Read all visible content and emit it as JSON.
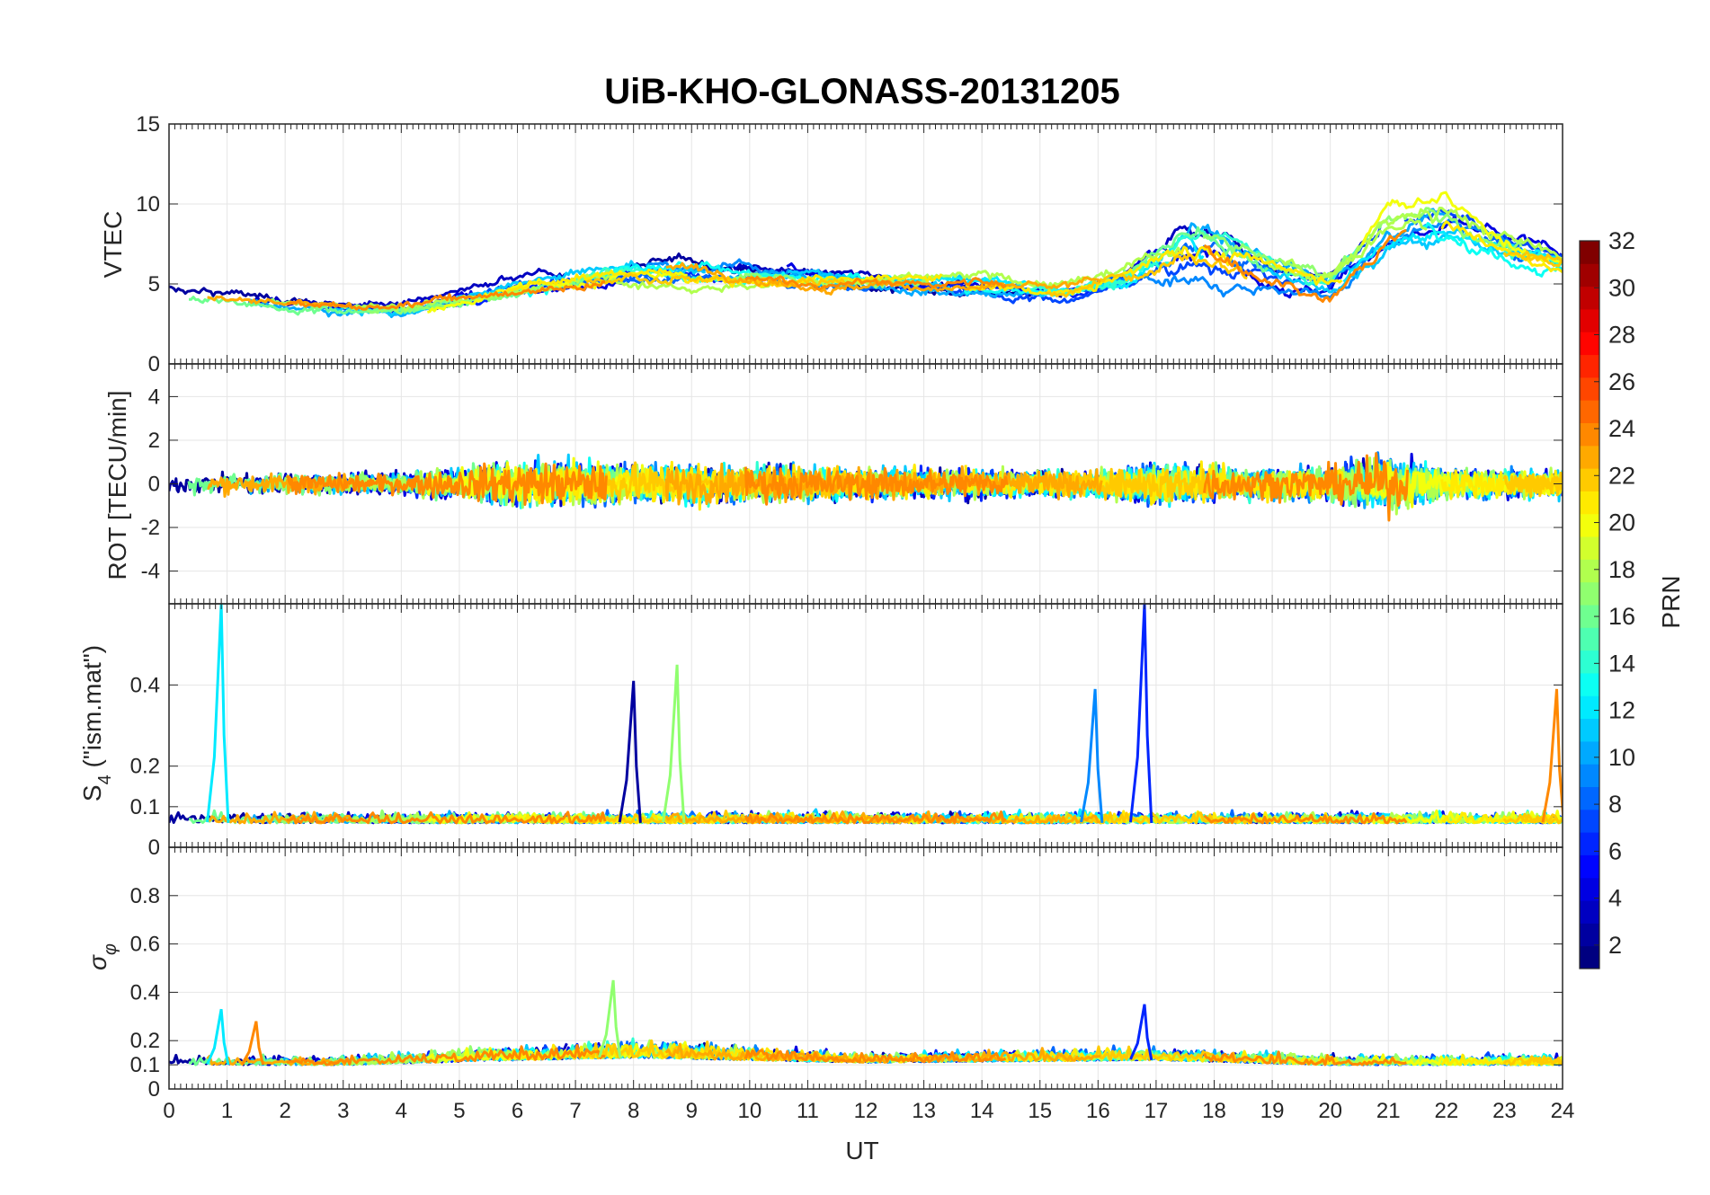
{
  "chart_data": [
    {
      "type": "line",
      "title": "UiB-KHO-GLONASS-20131205",
      "ylabel": "VTEC",
      "xlabel": "",
      "xlim": [
        0,
        24
      ],
      "ylim": [
        0,
        15
      ],
      "yticks": [
        0,
        5,
        10,
        15
      ],
      "grid": true,
      "series_profile": {
        "x": [
          0,
          2,
          4,
          6,
          8,
          10,
          12,
          14,
          15.5,
          16.5,
          17.5,
          18,
          19,
          20,
          21,
          22,
          23,
          24
        ],
        "baseline": [
          4.5,
          3.8,
          3.5,
          4.8,
          5.8,
          5.6,
          5.2,
          5.0,
          4.5,
          5.4,
          7.5,
          7.2,
          5.8,
          5.0,
          8.5,
          9.0,
          7.5,
          6.5
        ],
        "spread": [
          1.0,
          0.8,
          0.8,
          1.2,
          1.6,
          1.4,
          1.2,
          1.2,
          1.2,
          1.6,
          3.5,
          3.5,
          2.0,
          2.0,
          2.8,
          3.0,
          2.2,
          1.5
        ]
      }
    },
    {
      "type": "line",
      "ylabel": "ROT [TECU/min]",
      "xlim": [
        0,
        24
      ],
      "ylim": [
        -5.5,
        5.5
      ],
      "yticks": [
        -4,
        -2,
        0,
        2,
        4
      ],
      "grid": true,
      "series_profile": {
        "x": [
          0,
          4,
          6,
          8,
          12,
          16,
          17,
          19,
          20,
          21,
          22,
          24
        ],
        "baseline": [
          0,
          0,
          0,
          0,
          0,
          0,
          0,
          0,
          0,
          0,
          0,
          0
        ],
        "spread": [
          0.4,
          0.4,
          0.9,
          0.8,
          0.6,
          0.5,
          0.8,
          0.6,
          0.7,
          1.2,
          0.6,
          0.5
        ]
      }
    },
    {
      "type": "line",
      "ylabel": "S4 (\"ism.mat\")",
      "xlim": [
        0,
        24
      ],
      "ylim": [
        0,
        0.6
      ],
      "yticks": [
        0,
        0.1,
        0.2,
        0.4
      ],
      "grid": true,
      "spikes": [
        {
          "x": 0.9,
          "peak": 0.6,
          "prn": 12
        },
        {
          "x": 8.0,
          "peak": 0.41,
          "prn": 2
        },
        {
          "x": 8.75,
          "peak": 0.45,
          "prn": 17
        },
        {
          "x": 15.95,
          "peak": 0.39,
          "prn": 9
        },
        {
          "x": 16.8,
          "peak": 0.6,
          "prn": 6
        },
        {
          "x": 23.9,
          "peak": 0.39,
          "prn": 24
        }
      ],
      "series_profile": {
        "x": [
          0,
          24
        ],
        "baseline": [
          0.06,
          0.06
        ],
        "spread": [
          0.03,
          0.03
        ]
      }
    },
    {
      "type": "line",
      "ylabel": "σφ",
      "xlabel": "UT",
      "xlim": [
        0,
        24
      ],
      "ylim": [
        0,
        1
      ],
      "yticks": [
        0,
        0.1,
        0.2,
        0.4,
        0.6,
        0.8
      ],
      "xticks": [
        "0",
        "1",
        "2",
        "3",
        "4",
        "5",
        "6",
        "7",
        "8",
        "9",
        "10",
        "11",
        "12",
        "13",
        "14",
        "15",
        "16",
        "17",
        "18",
        "19",
        "20",
        "21",
        "22",
        "23",
        "24"
      ],
      "grid": true,
      "spikes": [
        {
          "x": 0.9,
          "peak": 0.33,
          "prn": 12
        },
        {
          "x": 1.5,
          "peak": 0.28,
          "prn": 24
        },
        {
          "x": 7.65,
          "peak": 0.45,
          "prn": 17
        },
        {
          "x": 16.8,
          "peak": 0.35,
          "prn": 6
        }
      ],
      "series_profile": {
        "x": [
          0,
          3,
          6,
          8,
          12,
          17,
          20,
          24
        ],
        "baseline": [
          0.1,
          0.1,
          0.12,
          0.13,
          0.11,
          0.12,
          0.1,
          0.1
        ],
        "spread": [
          0.04,
          0.04,
          0.06,
          0.07,
          0.04,
          0.05,
          0.04,
          0.04
        ]
      }
    }
  ],
  "colorbar": {
    "label": "PRN",
    "min": 1,
    "max": 32,
    "ticks": [
      2,
      4,
      6,
      8,
      10,
      12,
      14,
      16,
      18,
      20,
      22,
      24,
      26,
      28,
      30,
      32
    ],
    "colormap": "jet"
  },
  "visible_prns": [
    2,
    3,
    4,
    6,
    7,
    8,
    9,
    10,
    11,
    12,
    13,
    14,
    16,
    17,
    18,
    20,
    21,
    22,
    23,
    24
  ],
  "text": {
    "title": "UiB-KHO-GLONASS-20131205",
    "xlabel": "UT",
    "vtec_label": "VTEC",
    "rot_label": "ROT [TECU/min]",
    "s4_label_main": "S",
    "s4_label_sub": "4",
    "s4_label_rest": " (\"ism.mat\")",
    "sigma_label_main": "σ",
    "sigma_label_sub": "φ",
    "colorbar_label": "PRN"
  }
}
